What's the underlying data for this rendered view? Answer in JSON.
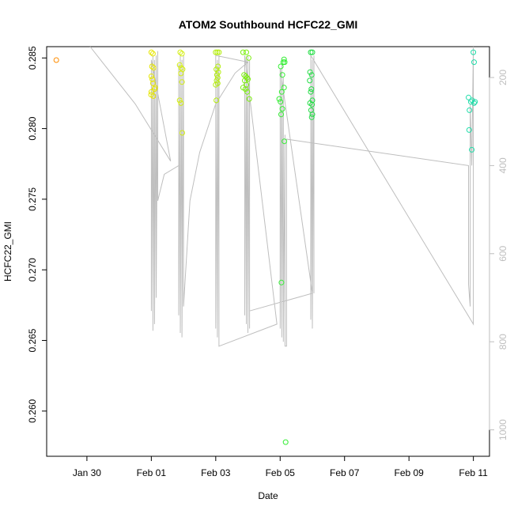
{
  "chart_data": {
    "type": "scatter",
    "title": "ATOM2 Southbound HCFC22_GMI",
    "xlabel": "Date",
    "ylabel": "HCFC22_GMI",
    "x_unit": "days since Jan 28",
    "x_ticks": [
      {
        "value": 2,
        "label": "Jan 30"
      },
      {
        "value": 4,
        "label": "Feb 01"
      },
      {
        "value": 6,
        "label": "Feb 03"
      },
      {
        "value": 8,
        "label": "Feb 05"
      },
      {
        "value": 10,
        "label": "Feb 07"
      },
      {
        "value": 12,
        "label": "Feb 09"
      },
      {
        "value": 14,
        "label": "Feb 11"
      }
    ],
    "xlim": [
      0.75,
      14.5
    ],
    "ylim": [
      0.2568,
      0.2858
    ],
    "y_ticks": [
      0.26,
      0.265,
      0.27,
      0.275,
      0.28,
      0.285
    ],
    "y_tick_labels": [
      "0.260",
      "0.265",
      "0.270",
      "0.275",
      "0.280",
      "0.285"
    ],
    "y2_label": "",
    "y2_ticks": [
      200,
      400,
      600,
      800,
      1000
    ],
    "y2_lim": [
      1060,
      130
    ],
    "grid": false,
    "legend": "none",
    "series": [
      {
        "color": "#FF8C00",
        "points": [
          [
            1.05,
            0.28485
          ]
        ]
      },
      {
        "color": "#E6E600",
        "points": [
          [
            4.0,
            0.2854
          ],
          [
            4.05,
            0.2853
          ],
          [
            4.02,
            0.2844
          ],
          [
            4.07,
            0.2843
          ],
          [
            4.0,
            0.2837
          ],
          [
            4.05,
            0.2832
          ],
          [
            4.1,
            0.2828
          ],
          [
            4.0,
            0.2826
          ],
          [
            4.06,
            0.2823
          ],
          [
            4.03,
            0.2835
          ],
          [
            4.12,
            0.2829
          ],
          [
            3.99,
            0.2824
          ]
        ]
      },
      {
        "color": "#D4EE10",
        "points": [
          [
            4.9,
            0.2854
          ],
          [
            4.95,
            0.2853
          ],
          [
            4.88,
            0.2845
          ],
          [
            4.93,
            0.2843
          ],
          [
            4.97,
            0.2842
          ],
          [
            4.92,
            0.2839
          ],
          [
            4.95,
            0.2833
          ],
          [
            4.88,
            0.282
          ],
          [
            4.92,
            0.2818
          ],
          [
            4.96,
            0.2797
          ]
        ]
      },
      {
        "color": "#B5EE10",
        "points": [
          [
            6.0,
            0.2854
          ],
          [
            6.05,
            0.2854
          ],
          [
            6.1,
            0.2854
          ],
          [
            6.07,
            0.2844
          ],
          [
            6.02,
            0.2842
          ],
          [
            6.08,
            0.284
          ],
          [
            6.04,
            0.2838
          ],
          [
            6.06,
            0.2836
          ],
          [
            6.03,
            0.2834
          ],
          [
            6.0,
            0.2831
          ],
          [
            6.06,
            0.2832
          ],
          [
            6.02,
            0.282
          ]
        ]
      },
      {
        "color": "#7CEE10",
        "points": [
          [
            6.85,
            0.2854
          ],
          [
            6.95,
            0.2854
          ],
          [
            6.88,
            0.2838
          ],
          [
            6.93,
            0.2837
          ],
          [
            6.97,
            0.2836
          ],
          [
            7.0,
            0.2835
          ],
          [
            6.9,
            0.2834
          ],
          [
            6.95,
            0.2831
          ],
          [
            6.85,
            0.2829
          ],
          [
            6.92,
            0.2828
          ],
          [
            6.98,
            0.2826
          ],
          [
            7.02,
            0.285
          ],
          [
            7.04,
            0.2821
          ]
        ]
      },
      {
        "color": "#33EE33",
        "points": [
          [
            8.02,
            0.2844
          ],
          [
            8.1,
            0.2847
          ],
          [
            8.07,
            0.2838
          ],
          [
            8.12,
            0.2829
          ],
          [
            8.05,
            0.2826
          ],
          [
            7.97,
            0.2821
          ],
          [
            8.01,
            0.2819
          ],
          [
            8.07,
            0.2814
          ],
          [
            8.03,
            0.281
          ],
          [
            8.13,
            0.2791
          ],
          [
            8.12,
            0.2849
          ],
          [
            8.14,
            0.2847
          ],
          [
            8.04,
            0.2691
          ],
          [
            8.17,
            0.2578
          ]
        ]
      },
      {
        "color": "#22DD44",
        "points": [
          [
            8.95,
            0.2854
          ],
          [
            9.0,
            0.2854
          ],
          [
            8.93,
            0.284
          ],
          [
            8.98,
            0.2838
          ],
          [
            8.92,
            0.2834
          ],
          [
            8.97,
            0.2828
          ],
          [
            8.95,
            0.2826
          ],
          [
            9.0,
            0.282
          ],
          [
            8.93,
            0.2818
          ],
          [
            8.99,
            0.2817
          ],
          [
            8.96,
            0.2813
          ],
          [
            9.0,
            0.281
          ],
          [
            8.98,
            0.2808
          ]
        ]
      },
      {
        "color": "#22DDAA",
        "points": [
          [
            13.85,
            0.2822
          ],
          [
            13.92,
            0.2819
          ],
          [
            13.96,
            0.282
          ],
          [
            14.02,
            0.2818
          ],
          [
            14.05,
            0.2819
          ],
          [
            13.88,
            0.2813
          ],
          [
            13.87,
            0.2799
          ],
          [
            13.95,
            0.2785
          ],
          [
            14.0,
            0.2854
          ],
          [
            14.02,
            0.2847
          ]
        ]
      }
    ],
    "pressure_trace_color": "#bebebe",
    "pressure_trace": [
      [
        2.1,
        130
      ],
      [
        3.5,
        260
      ],
      [
        4.6,
        390
      ],
      [
        4.0,
        160
      ],
      [
        4.0,
        730
      ],
      [
        4.05,
        150
      ],
      [
        4.05,
        775
      ],
      [
        4.1,
        160
      ],
      [
        4.1,
        760
      ],
      [
        4.15,
        150
      ],
      [
        4.15,
        700
      ],
      [
        4.2,
        140
      ],
      [
        4.2,
        480
      ],
      [
        4.25,
        465
      ],
      [
        4.4,
        420
      ],
      [
        4.85,
        400
      ],
      [
        4.85,
        170
      ],
      [
        4.85,
        740
      ],
      [
        4.9,
        150
      ],
      [
        4.9,
        780
      ],
      [
        4.95,
        160
      ],
      [
        4.95,
        790
      ],
      [
        5.0,
        150
      ],
      [
        5.0,
        720
      ],
      [
        5.2,
        480
      ],
      [
        5.5,
        370
      ],
      [
        6.0,
        260
      ],
      [
        6.6,
        190
      ],
      [
        7.0,
        165
      ],
      [
        6.0,
        150
      ],
      [
        6.0,
        770
      ],
      [
        6.05,
        160
      ],
      [
        6.05,
        790
      ],
      [
        6.1,
        150
      ],
      [
        6.1,
        740
      ],
      [
        6.1,
        810
      ],
      [
        7.9,
        760
      ],
      [
        6.9,
        150
      ],
      [
        6.9,
        740
      ],
      [
        6.95,
        160
      ],
      [
        6.95,
        760
      ],
      [
        7.0,
        150
      ],
      [
        7.0,
        780
      ],
      [
        7.05,
        160
      ],
      [
        7.05,
        770
      ],
      [
        7.05,
        730
      ],
      [
        9.0,
        690
      ],
      [
        8.0,
        180
      ],
      [
        8.0,
        770
      ],
      [
        8.05,
        170
      ],
      [
        8.05,
        790
      ],
      [
        8.1,
        200
      ],
      [
        8.1,
        800
      ],
      [
        8.15,
        330
      ],
      [
        8.15,
        810
      ],
      [
        8.2,
        810
      ],
      [
        8.2,
        340
      ],
      [
        13.85,
        400
      ],
      [
        13.85,
        670
      ],
      [
        13.9,
        720
      ],
      [
        13.9,
        260
      ],
      [
        13.95,
        400
      ],
      [
        14.0,
        130
      ],
      [
        14.0,
        760
      ],
      [
        8.95,
        150
      ],
      [
        8.95,
        750
      ],
      [
        9.0,
        160
      ],
      [
        9.0,
        770
      ],
      [
        9.05,
        150
      ],
      [
        9.05,
        690
      ]
    ]
  }
}
